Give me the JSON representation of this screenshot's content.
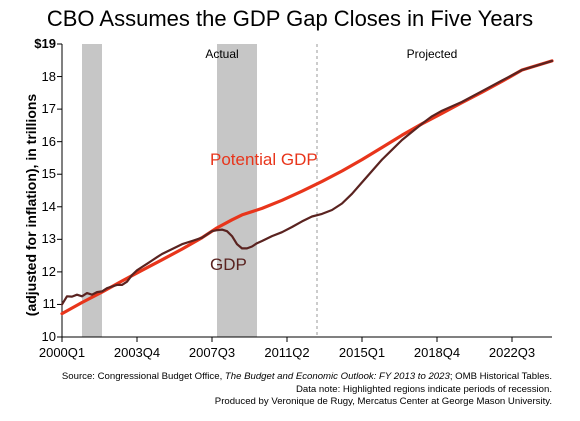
{
  "chart_data": {
    "type": "line",
    "title": "CBO Assumes the GDP Gap Closes in Five Years",
    "ylabel": "(adjusted for inflation), in trillions",
    "ylim": [
      10,
      19
    ],
    "xlim": [
      2000.0,
      2024.5
    ],
    "y_ticks": [
      "10",
      "11",
      "12",
      "13",
      "14",
      "15",
      "16",
      "17",
      "18",
      "$19"
    ],
    "y_tick_values": [
      10,
      11,
      12,
      13,
      14,
      15,
      16,
      17,
      18,
      19
    ],
    "x_ticks": [
      "2000Q1",
      "2003Q4",
      "2007Q3",
      "2011Q2",
      "2015Q1",
      "2018Q4",
      "2022Q3"
    ],
    "x_tick_values": [
      2000.0,
      2003.75,
      2007.5,
      2011.25,
      2015.0,
      2018.75,
      2022.5
    ],
    "regions": [
      "Actual",
      "Projected"
    ],
    "projection_start": 2012.75,
    "recessions": [
      [
        2001.0,
        2002.0
      ],
      [
        2007.75,
        2009.75
      ]
    ],
    "series": [
      {
        "name": "Potential GDP",
        "color": "#e8351b",
        "x": [
          2000.0,
          2001.0,
          2002.0,
          2003.0,
          2004.0,
          2005.0,
          2006.0,
          2007.0,
          2007.75,
          2008.5,
          2009.0,
          2010.0,
          2011.0,
          2012.0,
          2013.0,
          2014.0,
          2015.0,
          2016.0,
          2017.0,
          2018.0,
          2019.0,
          2020.0,
          2021.0,
          2022.0,
          2023.0,
          2024.5
        ],
        "values": [
          10.72,
          11.06,
          11.38,
          11.72,
          12.05,
          12.37,
          12.7,
          13.05,
          13.35,
          13.6,
          13.75,
          13.95,
          14.2,
          14.48,
          14.78,
          15.1,
          15.45,
          15.82,
          16.2,
          16.55,
          16.87,
          17.2,
          17.52,
          17.85,
          18.2,
          18.48
        ]
      },
      {
        "name": "GDP",
        "color": "#5a2320",
        "x": [
          2000.0,
          2000.25,
          2000.5,
          2000.75,
          2001.0,
          2001.25,
          2001.5,
          2001.75,
          2002.0,
          2002.25,
          2002.5,
          2002.75,
          2003.0,
          2003.25,
          2003.5,
          2003.75,
          2004.0,
          2004.25,
          2004.5,
          2004.75,
          2005.0,
          2005.5,
          2006.0,
          2006.5,
          2007.0,
          2007.5,
          2007.75,
          2008.0,
          2008.25,
          2008.5,
          2008.75,
          2009.0,
          2009.25,
          2009.5,
          2009.75,
          2010.0,
          2010.5,
          2011.0,
          2011.5,
          2012.0,
          2012.5,
          2013.0,
          2013.5,
          2014.0,
          2014.5,
          2015.0,
          2015.5,
          2016.0,
          2016.5,
          2017.0,
          2017.5,
          2018.0,
          2018.5,
          2019.0,
          2020.0,
          2021.0,
          2022.0,
          2023.0,
          2024.5
        ],
        "values": [
          11.0,
          11.25,
          11.24,
          11.3,
          11.25,
          11.35,
          11.3,
          11.38,
          11.4,
          11.5,
          11.55,
          11.6,
          11.6,
          11.7,
          11.9,
          12.05,
          12.15,
          12.25,
          12.35,
          12.45,
          12.55,
          12.7,
          12.85,
          12.95,
          13.05,
          13.25,
          13.28,
          13.3,
          13.25,
          13.1,
          12.85,
          12.72,
          12.72,
          12.78,
          12.88,
          12.95,
          13.1,
          13.22,
          13.38,
          13.55,
          13.7,
          13.78,
          13.9,
          14.1,
          14.4,
          14.75,
          15.1,
          15.45,
          15.75,
          16.05,
          16.3,
          16.55,
          16.78,
          16.95,
          17.22,
          17.55,
          17.88,
          18.2,
          18.48
        ]
      }
    ],
    "annotations": [
      "Potential GDP",
      "GDP"
    ]
  },
  "footer": {
    "source_prefix": "Source: Congressional Budget Office, ",
    "source_title": "The Budget and Economic Outlook: FY 2013 to 2023",
    "source_suffix": "; OMB Historical Tables.",
    "note": "Data note: Highlighted regions indicate periods of recession.",
    "credit": "Produced by Veronique de Rugy, Mercatus Center at George Mason University."
  }
}
